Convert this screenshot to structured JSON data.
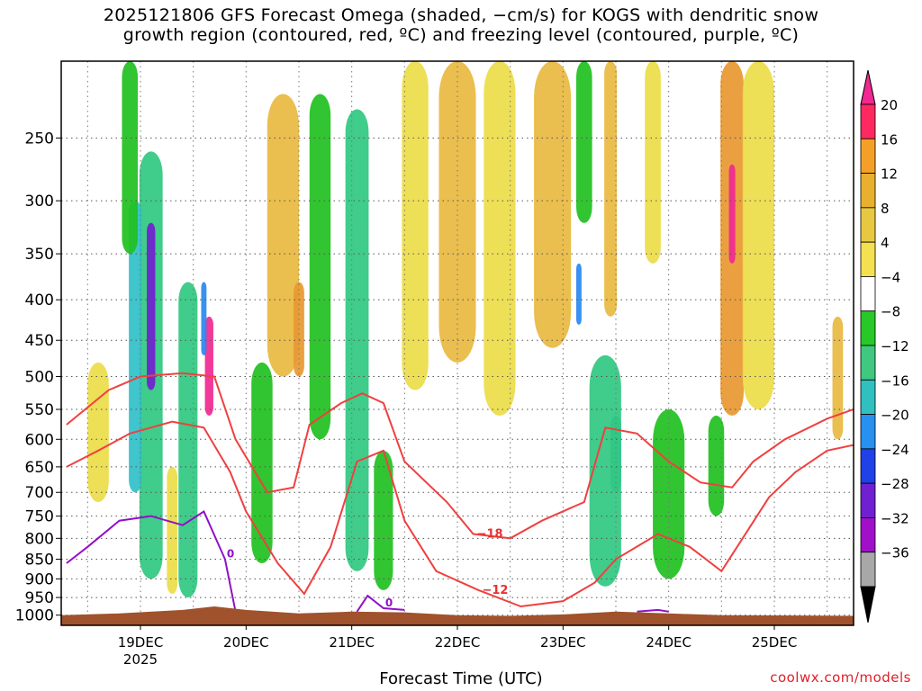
{
  "title": {
    "line1": "2025121806 GFS Forecast Omega (shaded, −cm/s) for KOGS with dendritic snow",
    "line2": "growth region (contoured, red, ºC) and freezing level (contoured, purple, ºC)"
  },
  "xlabel": "Forecast Time (UTC)",
  "credit": "coolwx.com/models",
  "chart_data": {
    "type": "heatmap",
    "y_axis": {
      "label": "",
      "scale": "log-pressure",
      "range": [
        1030,
        200
      ],
      "ticks": [
        250,
        300,
        350,
        400,
        450,
        500,
        550,
        600,
        650,
        700,
        750,
        800,
        850,
        900,
        950,
        1000
      ]
    },
    "x_axis": {
      "range_days": [
        "18DEC 06Z",
        "25DEC 18Z"
      ],
      "ticks": [
        "19DEC",
        "20DEC",
        "21DEC",
        "22DEC",
        "23DEC",
        "24DEC",
        "25DEC"
      ],
      "year_label": "2025"
    },
    "colorbar": {
      "labels": [
        "20",
        "16",
        "12",
        "8",
        "4",
        "−4",
        "−8",
        "−12",
        "−16",
        "−20",
        "−24",
        "−28",
        "−32",
        "−36"
      ],
      "colors": [
        "#ff2860",
        "#f4a028",
        "#e8b02e",
        "#e8c840",
        "#f4e050",
        "#ffffff",
        "#28c828",
        "#40c880",
        "#30c0c0",
        "#2890f0",
        "#2040e8",
        "#7020d0",
        "#a010c8",
        "#a8a8a8"
      ],
      "top_arrow_color": "#f02890",
      "bottom_arrow_color": "#000000"
    },
    "omega_cells": [
      {
        "t": 19.1,
        "p0": 260,
        "p1": 900,
        "w": 0.22,
        "v": -12
      },
      {
        "t": 19.1,
        "p0": 320,
        "p1": 520,
        "w": 0.08,
        "v": -28
      },
      {
        "t": 18.95,
        "p0": 300,
        "p1": 700,
        "w": 0.12,
        "v": -16
      },
      {
        "t": 19.45,
        "p0": 380,
        "p1": 950,
        "w": 0.18,
        "v": -12
      },
      {
        "t": 19.65,
        "p0": 420,
        "p1": 560,
        "w": 0.08,
        "v": 20
      },
      {
        "t": 19.6,
        "p0": 380,
        "p1": 470,
        "w": 0.05,
        "v": -20
      },
      {
        "t": 18.9,
        "p0": 200,
        "p1": 350,
        "w": 0.15,
        "v": -8
      },
      {
        "t": 18.6,
        "p0": 480,
        "p1": 720,
        "w": 0.2,
        "v": 6
      },
      {
        "t": 19.3,
        "p0": 650,
        "p1": 940,
        "w": 0.1,
        "v": 6
      },
      {
        "t": 20.35,
        "p0": 220,
        "p1": 500,
        "w": 0.3,
        "v": 10
      },
      {
        "t": 20.5,
        "p0": 380,
        "p1": 500,
        "w": 0.1,
        "v": 14
      },
      {
        "t": 20.15,
        "p0": 480,
        "p1": 860,
        "w": 0.2,
        "v": -8
      },
      {
        "t": 20.7,
        "p0": 220,
        "p1": 600,
        "w": 0.2,
        "v": -8
      },
      {
        "t": 21.05,
        "p0": 230,
        "p1": 880,
        "w": 0.22,
        "v": -10
      },
      {
        "t": 21.3,
        "p0": 620,
        "p1": 930,
        "w": 0.18,
        "v": -8
      },
      {
        "t": 21.6,
        "p0": 200,
        "p1": 520,
        "w": 0.25,
        "v": 6
      },
      {
        "t": 22.0,
        "p0": 200,
        "p1": 480,
        "w": 0.35,
        "v": 8
      },
      {
        "t": 22.4,
        "p0": 200,
        "p1": 560,
        "w": 0.3,
        "v": 6
      },
      {
        "t": 22.9,
        "p0": 200,
        "p1": 460,
        "w": 0.35,
        "v": 8
      },
      {
        "t": 23.2,
        "p0": 200,
        "p1": 320,
        "w": 0.15,
        "v": -8
      },
      {
        "t": 23.45,
        "p0": 200,
        "p1": 420,
        "w": 0.12,
        "v": 10
      },
      {
        "t": 23.5,
        "p0": 560,
        "p1": 700,
        "w": 0.1,
        "v": -16
      },
      {
        "t": 23.4,
        "p0": 470,
        "p1": 920,
        "w": 0.3,
        "v": -10
      },
      {
        "t": 23.15,
        "p0": 360,
        "p1": 430,
        "w": 0.05,
        "v": -20
      },
      {
        "t": 23.85,
        "p0": 200,
        "p1": 360,
        "w": 0.15,
        "v": 6
      },
      {
        "t": 24.0,
        "p0": 550,
        "p1": 900,
        "w": 0.3,
        "v": -8
      },
      {
        "t": 24.6,
        "p0": 200,
        "p1": 560,
        "w": 0.22,
        "v": 12
      },
      {
        "t": 24.6,
        "p0": 270,
        "p1": 360,
        "w": 0.06,
        "v": 20
      },
      {
        "t": 24.45,
        "p0": 560,
        "p1": 750,
        "w": 0.15,
        "v": -8
      },
      {
        "t": 24.85,
        "p0": 200,
        "p1": 550,
        "w": 0.3,
        "v": 6
      },
      {
        "t": 25.6,
        "p0": 420,
        "p1": 600,
        "w": 0.1,
        "v": 8
      }
    ],
    "dgz_contours": [
      {
        "label": "−18",
        "points": [
          [
            18.3,
            575
          ],
          [
            18.7,
            520
          ],
          [
            19.0,
            500
          ],
          [
            19.4,
            495
          ],
          [
            19.7,
            500
          ],
          [
            19.9,
            600
          ],
          [
            20.2,
            700
          ],
          [
            20.45,
            690
          ],
          [
            20.6,
            575
          ],
          [
            20.9,
            540
          ],
          [
            21.1,
            525
          ],
          [
            21.3,
            540
          ],
          [
            21.5,
            640
          ],
          [
            21.9,
            720
          ],
          [
            22.15,
            790
          ],
          [
            22.5,
            800
          ],
          [
            22.8,
            760
          ],
          [
            23.2,
            720
          ],
          [
            23.4,
            580
          ],
          [
            23.7,
            590
          ],
          [
            24.0,
            640
          ],
          [
            24.3,
            680
          ],
          [
            24.6,
            690
          ],
          [
            24.8,
            640
          ],
          [
            25.1,
            600
          ],
          [
            25.5,
            565
          ],
          [
            25.75,
            550
          ]
        ]
      },
      {
        "label": "−12",
        "points": [
          [
            18.3,
            650
          ],
          [
            18.6,
            620
          ],
          [
            18.9,
            590
          ],
          [
            19.3,
            570
          ],
          [
            19.6,
            580
          ],
          [
            19.85,
            660
          ],
          [
            20.0,
            740
          ],
          [
            20.3,
            860
          ],
          [
            20.55,
            940
          ],
          [
            20.8,
            820
          ],
          [
            21.05,
            640
          ],
          [
            21.3,
            620
          ],
          [
            21.5,
            760
          ],
          [
            21.8,
            880
          ],
          [
            22.2,
            930
          ],
          [
            22.6,
            975
          ],
          [
            23.0,
            960
          ],
          [
            23.3,
            910
          ],
          [
            23.5,
            850
          ],
          [
            23.9,
            790
          ],
          [
            24.2,
            820
          ],
          [
            24.5,
            880
          ],
          [
            24.7,
            800
          ],
          [
            24.95,
            710
          ],
          [
            25.2,
            660
          ],
          [
            25.5,
            620
          ],
          [
            25.75,
            610
          ]
        ]
      }
    ],
    "freezing_contours": [
      {
        "label": "0",
        "points": [
          [
            18.3,
            860
          ],
          [
            18.5,
            820
          ],
          [
            18.8,
            760
          ],
          [
            19.1,
            750
          ],
          [
            19.4,
            770
          ],
          [
            19.6,
            740
          ],
          [
            19.8,
            850
          ],
          [
            19.9,
            990
          ]
        ]
      },
      {
        "label": "0",
        "points": [
          [
            21.05,
            990
          ],
          [
            21.15,
            945
          ],
          [
            21.3,
            980
          ],
          [
            21.5,
            985
          ]
        ]
      },
      {
        "label": "",
        "points": [
          [
            23.7,
            990
          ],
          [
            23.9,
            985
          ],
          [
            24.0,
            990
          ]
        ]
      }
    ],
    "terrain_color": "#a0522d",
    "series": [
      {
        "name": "",
        "values": []
      }
    ]
  }
}
